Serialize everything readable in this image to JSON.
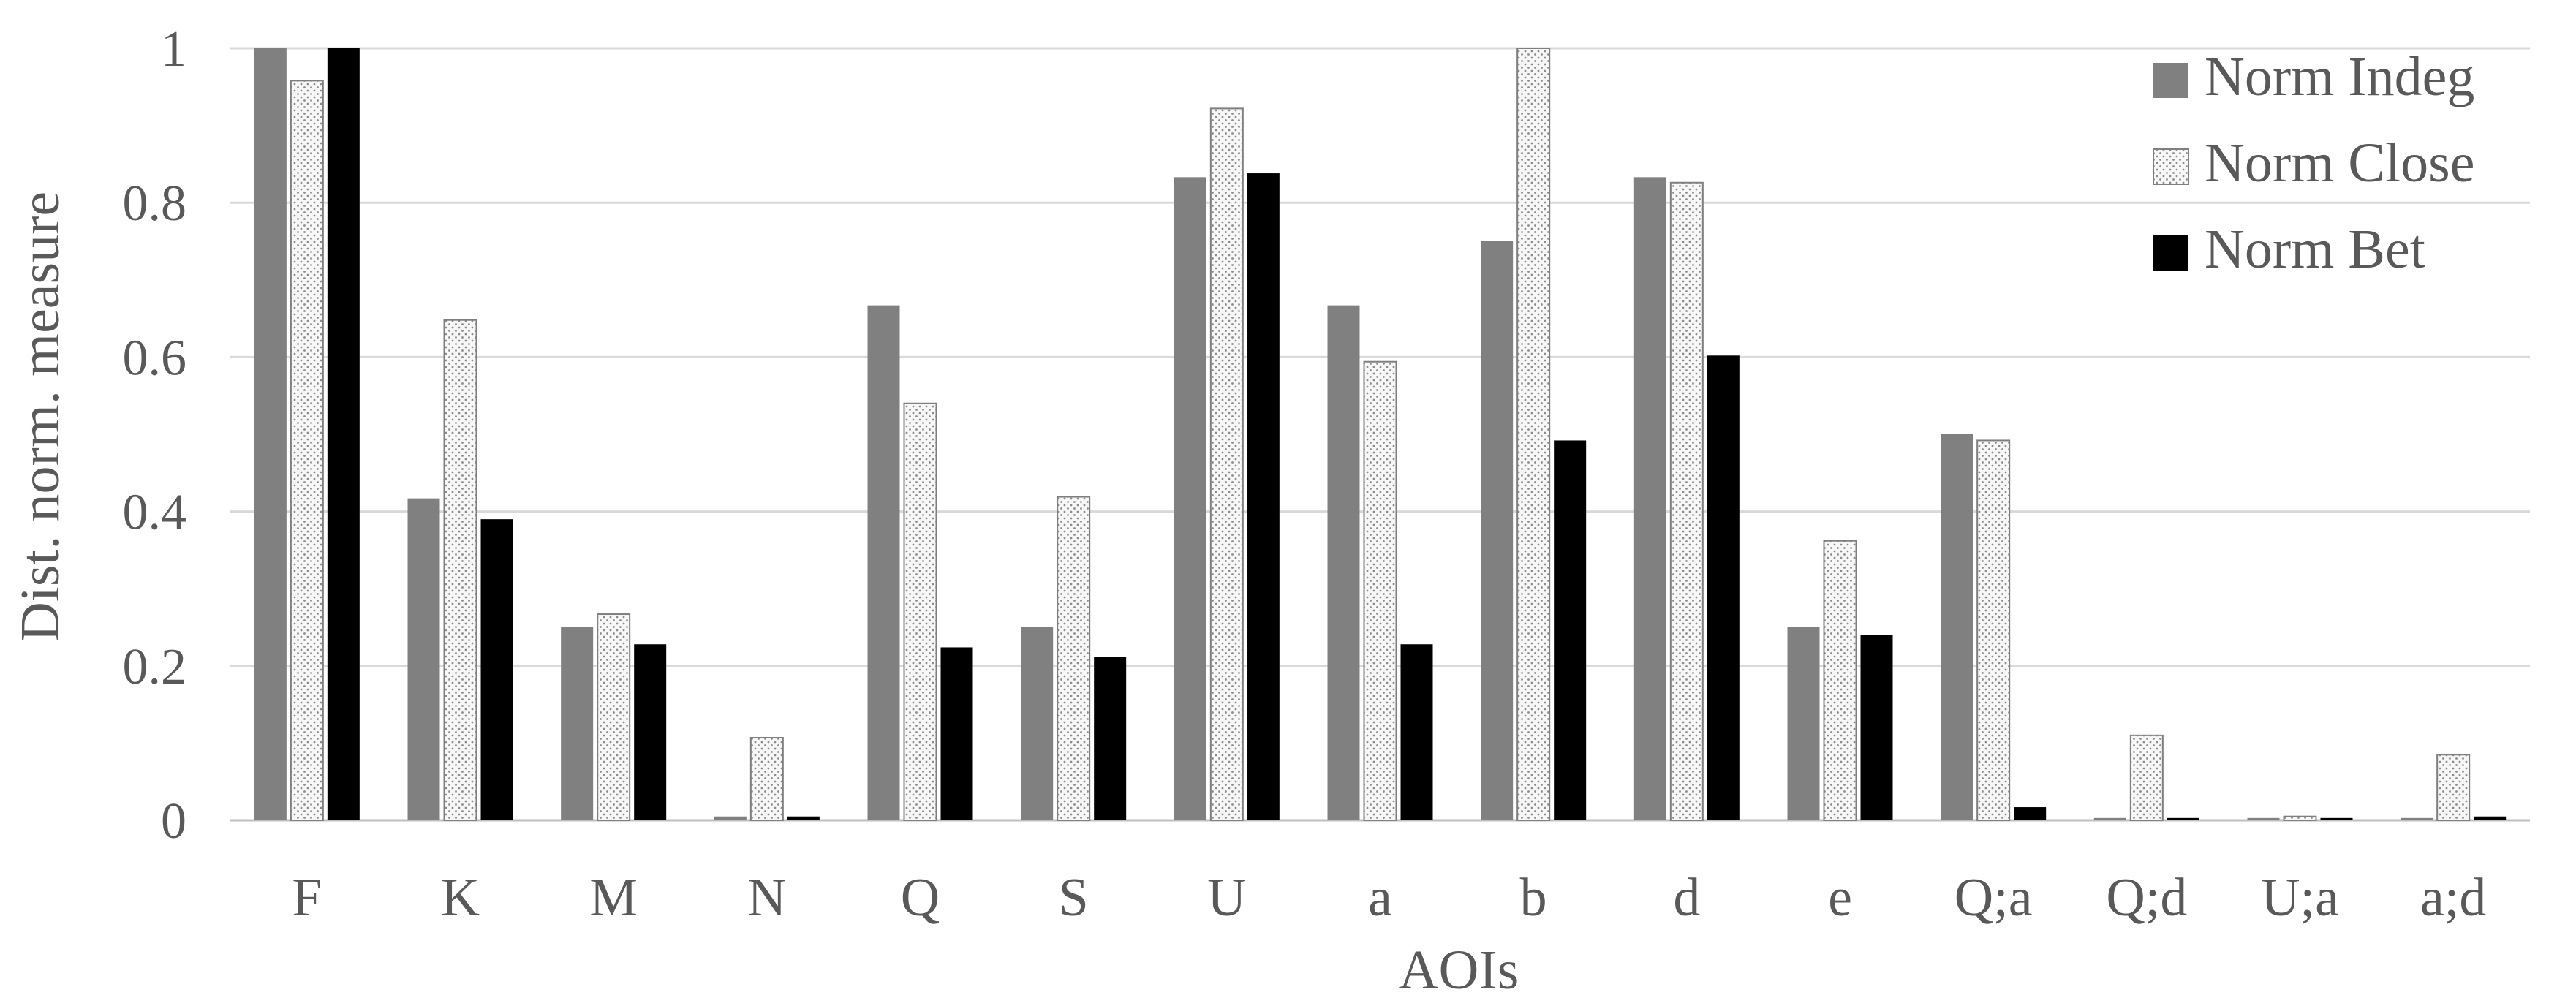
{
  "chart_data": {
    "type": "bar",
    "title": "",
    "xlabel": "AOIs",
    "ylabel": "Dist. norm. measure",
    "ylim": [
      0,
      1
    ],
    "yticks": [
      0,
      0.2,
      0.4,
      0.6,
      0.8,
      1
    ],
    "ytick_labels": [
      "0",
      "0.2",
      "0.4",
      "0.6",
      "0.8",
      "1"
    ],
    "grid": true,
    "legend_position": "top-right",
    "categories": [
      "F",
      "K",
      "M",
      "N",
      "Q",
      "S",
      "U",
      "a",
      "b",
      "d",
      "e",
      "Q;a",
      "Q;d",
      "U;a",
      "a;d"
    ],
    "series": [
      {
        "name": "Norm Indeg",
        "color": "#808080",
        "pattern": "solid",
        "values": [
          1.0,
          0.417,
          0.25,
          0.005,
          0.667,
          0.25,
          0.833,
          0.667,
          0.75,
          0.833,
          0.25,
          0.5,
          0.003,
          0.003,
          0.003
        ]
      },
      {
        "name": "Norm Close",
        "color": "#f2f2f2",
        "pattern": "dotted",
        "values": [
          0.958,
          0.648,
          0.267,
          0.107,
          0.54,
          0.419,
          0.922,
          0.594,
          1.0,
          0.826,
          0.362,
          0.492,
          0.11,
          0.005,
          0.085
        ]
      },
      {
        "name": "Norm Bet",
        "color": "#000000",
        "pattern": "solid",
        "values": [
          1.0,
          0.39,
          0.228,
          0.005,
          0.224,
          0.212,
          0.838,
          0.228,
          0.492,
          0.602,
          0.24,
          0.017,
          0.003,
          0.003,
          0.005
        ]
      }
    ]
  }
}
